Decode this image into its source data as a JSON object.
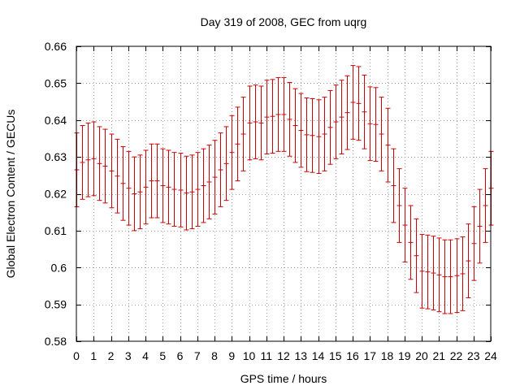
{
  "chart_data": {
    "type": "line",
    "style": "errorbars",
    "title": "Day 319 of 2008, GEC from uqrg",
    "xlabel": "GPS time / hours",
    "ylabel": "Global Electron Content / GECUs",
    "xlim": [
      0,
      24
    ],
    "ylim": [
      0.58,
      0.66
    ],
    "xticks": [
      0,
      1,
      2,
      3,
      4,
      5,
      6,
      7,
      8,
      9,
      10,
      11,
      12,
      13,
      14,
      15,
      16,
      17,
      18,
      19,
      20,
      21,
      22,
      23,
      24
    ],
    "yticks": [
      0.58,
      0.59,
      0.6,
      0.61,
      0.62,
      0.63,
      0.64,
      0.65,
      0.66
    ],
    "ytick_labels": [
      "0.58",
      "0.59",
      "0.6",
      "0.61",
      "0.62",
      "0.63",
      "0.64",
      "0.65",
      "0.66"
    ],
    "grid": true,
    "line_color": "#cc0000",
    "series": [
      {
        "name": "GEC",
        "x": [
          0,
          0.333,
          0.667,
          1,
          1.333,
          1.667,
          2,
          2.333,
          2.667,
          3,
          3.333,
          3.667,
          4,
          4.333,
          4.667,
          5,
          5.333,
          5.667,
          6,
          6.333,
          6.667,
          7,
          7.333,
          7.667,
          8,
          8.333,
          8.667,
          9,
          9.333,
          9.667,
          10,
          10.333,
          10.667,
          11,
          11.333,
          11.667,
          12,
          12.333,
          12.667,
          13,
          13.333,
          13.667,
          14,
          14.333,
          14.667,
          15,
          15.333,
          15.667,
          16,
          16.333,
          16.667,
          17,
          17.333,
          17.667,
          18,
          18.333,
          18.667,
          19,
          19.333,
          19.667,
          20,
          20.333,
          20.667,
          21,
          21.333,
          21.667,
          22,
          22.333,
          22.667,
          23,
          23.333,
          23.667,
          24
        ],
        "y": [
          0.6265,
          0.6285,
          0.6292,
          0.6295,
          0.6282,
          0.6275,
          0.6262,
          0.6248,
          0.6228,
          0.6215,
          0.62,
          0.6205,
          0.6218,
          0.6235,
          0.6235,
          0.6222,
          0.6218,
          0.6212,
          0.621,
          0.6202,
          0.6205,
          0.6212,
          0.6222,
          0.6232,
          0.6245,
          0.6265,
          0.6282,
          0.6312,
          0.6335,
          0.6362,
          0.6392,
          0.6395,
          0.6392,
          0.6408,
          0.641,
          0.6415,
          0.6415,
          0.6402,
          0.6385,
          0.6372,
          0.636,
          0.6358,
          0.6355,
          0.6362,
          0.638,
          0.6395,
          0.6408,
          0.642,
          0.6448,
          0.6445,
          0.6422,
          0.639,
          0.6388,
          0.6362,
          0.6332,
          0.6222,
          0.6168,
          0.6115,
          0.6068,
          0.6032,
          0.599,
          0.5988,
          0.5985,
          0.598,
          0.5975,
          0.5975,
          0.5978,
          0.5983,
          0.6018,
          0.6065,
          0.6112,
          0.6168,
          0.6215
        ],
        "error": [
          0.01,
          0.01,
          0.01,
          0.01,
          0.01,
          0.01,
          0.01,
          0.01,
          0.01,
          0.01,
          0.01,
          0.01,
          0.01,
          0.01,
          0.01,
          0.01,
          0.01,
          0.01,
          0.01,
          0.01,
          0.01,
          0.01,
          0.01,
          0.01,
          0.01,
          0.01,
          0.01,
          0.01,
          0.01,
          0.01,
          0.01,
          0.01,
          0.01,
          0.01,
          0.01,
          0.01,
          0.01,
          0.01,
          0.01,
          0.01,
          0.01,
          0.01,
          0.01,
          0.01,
          0.01,
          0.01,
          0.01,
          0.01,
          0.01,
          0.01,
          0.01,
          0.01,
          0.01,
          0.01,
          0.01,
          0.01,
          0.01,
          0.01,
          0.01,
          0.01,
          0.01,
          0.01,
          0.01,
          0.01,
          0.01,
          0.01,
          0.01,
          0.01,
          0.01,
          0.01,
          0.01,
          0.01,
          0.01
        ]
      }
    ]
  }
}
